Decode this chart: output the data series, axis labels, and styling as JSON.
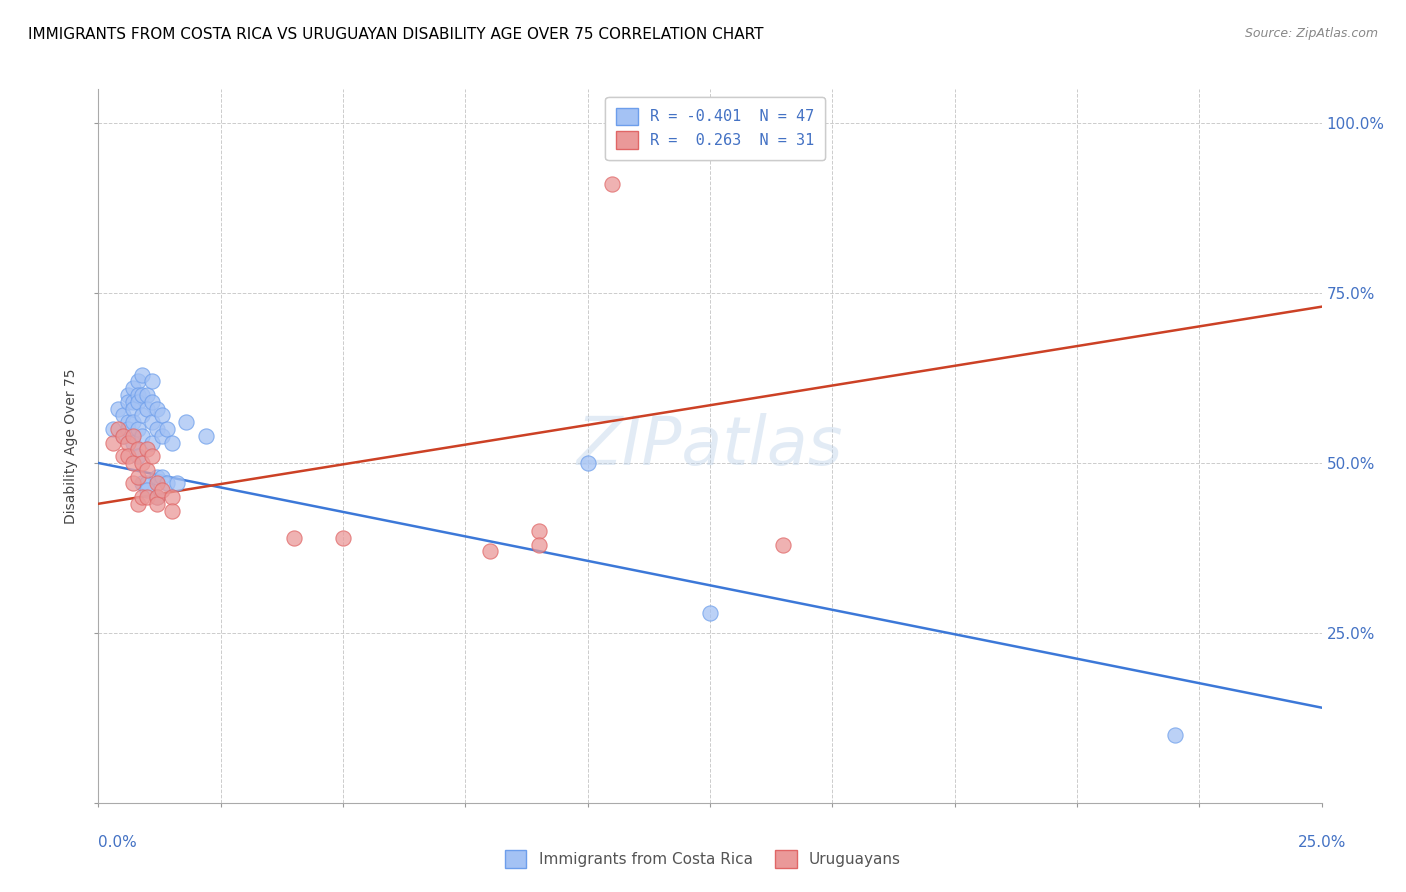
{
  "title": "IMMIGRANTS FROM COSTA RICA VS URUGUAYAN DISABILITY AGE OVER 75 CORRELATION CHART",
  "source": "Source: ZipAtlas.com",
  "legend_label1": "Immigrants from Costa Rica",
  "legend_label2": "Uruguayans",
  "r1": -0.401,
  "n1": 47,
  "r2": 0.263,
  "n2": 31,
  "blue_color": "#a4c2f4",
  "pink_color": "#ea9999",
  "blue_edge_color": "#6d9eeb",
  "pink_edge_color": "#e06666",
  "blue_line_color": "#3c78d8",
  "pink_line_color": "#cc4125",
  "axis_color": "#4472c4",
  "blue_scatter": [
    [
      0.3,
      55.0
    ],
    [
      0.4,
      58.0
    ],
    [
      0.5,
      57.0
    ],
    [
      0.5,
      54.0
    ],
    [
      0.6,
      60.0
    ],
    [
      0.6,
      59.0
    ],
    [
      0.6,
      56.0
    ],
    [
      0.6,
      55.0
    ],
    [
      0.7,
      61.0
    ],
    [
      0.7,
      59.0
    ],
    [
      0.7,
      58.0
    ],
    [
      0.7,
      56.0
    ],
    [
      0.7,
      53.0
    ],
    [
      0.8,
      62.0
    ],
    [
      0.8,
      60.0
    ],
    [
      0.8,
      59.0
    ],
    [
      0.8,
      55.0
    ],
    [
      0.8,
      51.0
    ],
    [
      0.9,
      63.0
    ],
    [
      0.9,
      60.0
    ],
    [
      0.9,
      57.0
    ],
    [
      0.9,
      54.0
    ],
    [
      0.9,
      47.0
    ],
    [
      1.0,
      60.0
    ],
    [
      1.0,
      58.0
    ],
    [
      1.0,
      47.0
    ],
    [
      1.0,
      46.0
    ],
    [
      1.1,
      62.0
    ],
    [
      1.1,
      59.0
    ],
    [
      1.1,
      56.0
    ],
    [
      1.1,
      53.0
    ],
    [
      1.2,
      58.0
    ],
    [
      1.2,
      55.0
    ],
    [
      1.2,
      48.0
    ],
    [
      1.2,
      45.0
    ],
    [
      1.3,
      57.0
    ],
    [
      1.3,
      54.0
    ],
    [
      1.3,
      48.0
    ],
    [
      1.4,
      55.0
    ],
    [
      1.4,
      47.0
    ],
    [
      1.5,
      53.0
    ],
    [
      1.6,
      47.0
    ],
    [
      1.8,
      56.0
    ],
    [
      2.2,
      54.0
    ],
    [
      10.0,
      50.0
    ],
    [
      12.5,
      28.0
    ],
    [
      22.0,
      10.0
    ]
  ],
  "pink_scatter": [
    [
      0.3,
      53.0
    ],
    [
      0.4,
      55.0
    ],
    [
      0.5,
      54.0
    ],
    [
      0.5,
      51.0
    ],
    [
      0.6,
      53.0
    ],
    [
      0.6,
      51.0
    ],
    [
      0.7,
      54.0
    ],
    [
      0.7,
      50.0
    ],
    [
      0.7,
      47.0
    ],
    [
      0.8,
      52.0
    ],
    [
      0.8,
      48.0
    ],
    [
      0.8,
      44.0
    ],
    [
      0.9,
      50.0
    ],
    [
      0.9,
      45.0
    ],
    [
      1.0,
      52.0
    ],
    [
      1.0,
      49.0
    ],
    [
      1.0,
      45.0
    ],
    [
      1.1,
      51.0
    ],
    [
      1.2,
      47.0
    ],
    [
      1.2,
      45.0
    ],
    [
      1.2,
      44.0
    ],
    [
      1.3,
      46.0
    ],
    [
      1.5,
      45.0
    ],
    [
      1.5,
      43.0
    ],
    [
      4.0,
      39.0
    ],
    [
      5.0,
      39.0
    ],
    [
      8.0,
      37.0
    ],
    [
      9.0,
      40.0
    ],
    [
      9.0,
      38.0
    ],
    [
      10.5,
      91.0
    ],
    [
      14.0,
      38.0
    ]
  ],
  "xlim": [
    0.0,
    25.0
  ],
  "ylim": [
    0.0,
    105.0
  ],
  "blue_trend": [
    0.0,
    25.0,
    50.0,
    14.0
  ],
  "pink_trend": [
    0.0,
    25.0,
    44.0,
    73.0
  ],
  "yticks": [
    0.0,
    25.0,
    50.0,
    75.0,
    100.0
  ],
  "xtick_minor_count": 10
}
